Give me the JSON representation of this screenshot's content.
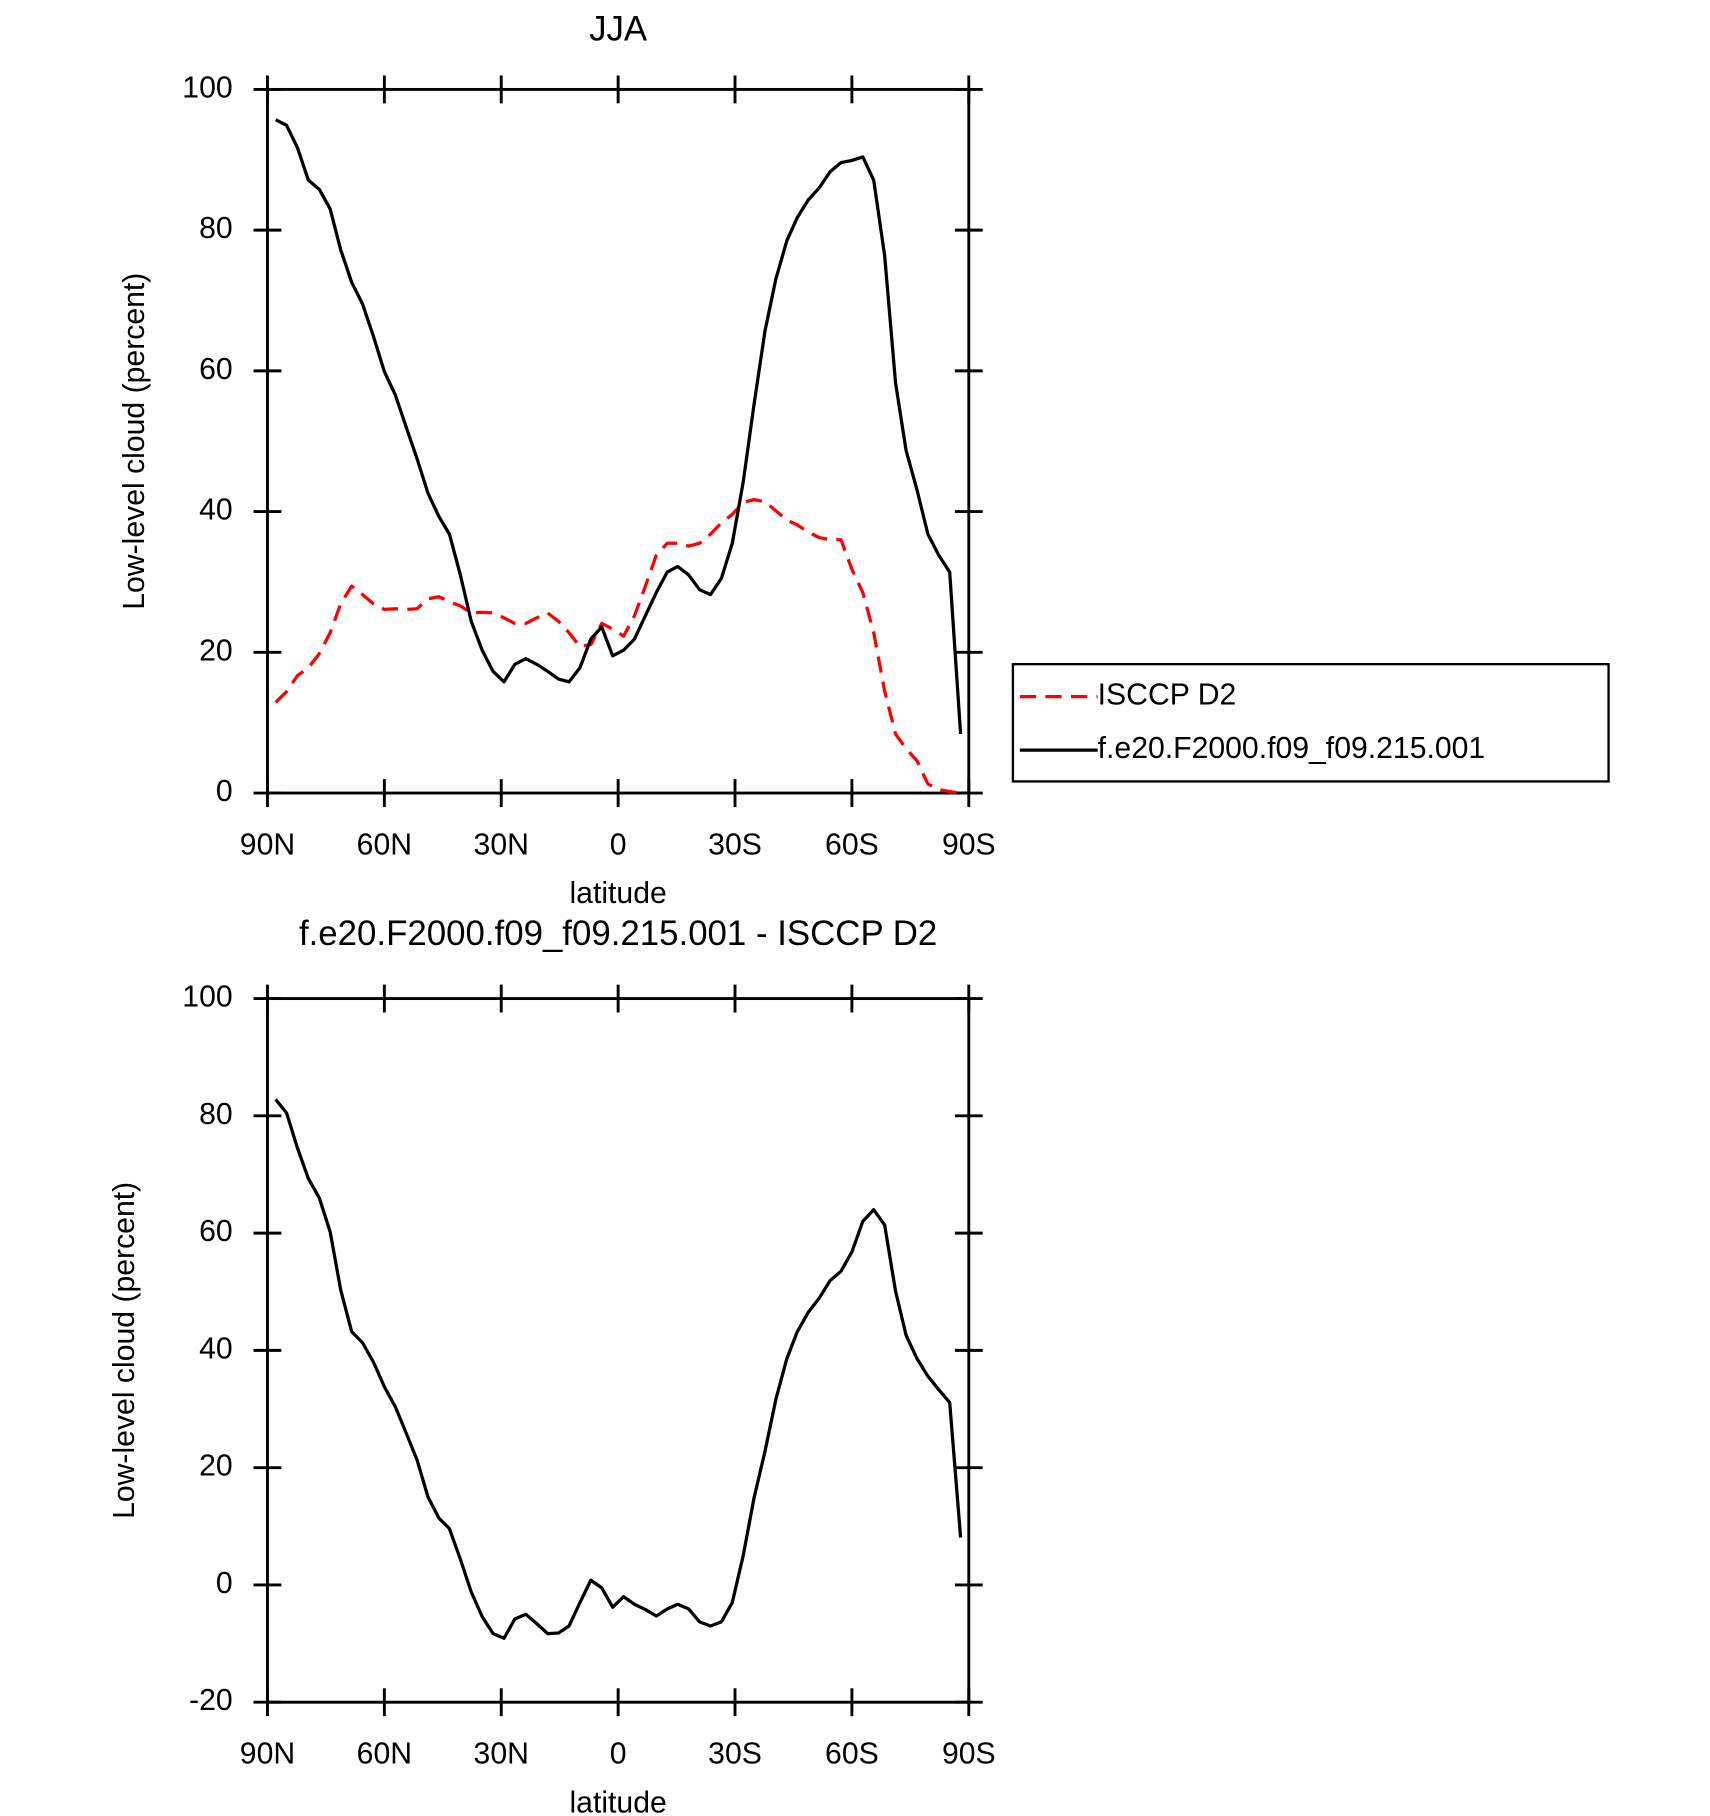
{
  "chart_data": [
    {
      "type": "line",
      "title": "JJA",
      "xlabel": "latitude",
      "ylabel": "Low-level cloud (percent)",
      "x": [
        87.9,
        85.1,
        82.3,
        79.5,
        76.7,
        73.9,
        71.2,
        68.4,
        65.6,
        62.8,
        60.0,
        57.2,
        54.4,
        51.6,
        48.8,
        46.0,
        43.3,
        40.5,
        37.7,
        34.9,
        32.1,
        29.3,
        26.5,
        23.7,
        20.9,
        18.1,
        15.3,
        12.6,
        9.8,
        7.0,
        4.2,
        1.4,
        -1.4,
        -4.2,
        -7.0,
        -9.8,
        -12.6,
        -15.3,
        -18.1,
        -20.9,
        -23.7,
        -26.5,
        -29.3,
        -32.1,
        -34.9,
        -37.7,
        -40.5,
        -43.3,
        -46.0,
        -48.8,
        -51.6,
        -54.4,
        -57.2,
        -60.0,
        -62.8,
        -65.6,
        -68.4,
        -71.2,
        -73.9,
        -76.7,
        -79.5,
        -82.3,
        -85.1,
        -87.9
      ],
      "series": [
        {
          "name": "ISCCP D2",
          "color": "#ff0000",
          "dashed": true,
          "values": [
            12.9,
            14.4,
            16.7,
            17.8,
            19.8,
            22.8,
            26.9,
            29.4,
            28.2,
            26.9,
            26.1,
            26.2,
            26.1,
            26.2,
            27.6,
            27.9,
            27.2,
            26.6,
            25.6,
            25.7,
            25.6,
            24.9,
            24.1,
            24.1,
            24.9,
            25.6,
            24.4,
            22.8,
            20.8,
            21.1,
            24.1,
            23.3,
            22.3,
            25.2,
            29.4,
            33.8,
            35.5,
            35.5,
            35.1,
            35.5,
            36.8,
            38.4,
            39.6,
            41.3,
            41.7,
            41.4,
            40.1,
            38.8,
            38.1,
            37.1,
            36.3,
            36.0,
            36.0,
            31.8,
            28.5,
            22.8,
            14.5,
            8.4,
            6.3,
            4.6,
            1.3,
            0.5,
            0.2,
            0
          ]
        },
        {
          "name": "f.e20.F2000.f09_f09.215.001",
          "color": "#000000",
          "dashed": false,
          "values": [
            95.7,
            94.9,
            91.7,
            87.1,
            85.8,
            83.0,
            77.2,
            72.6,
            69.5,
            64.9,
            59.9,
            56.6,
            52.0,
            47.5,
            42.6,
            39.3,
            36.8,
            31.0,
            24.4,
            20.3,
            17.3,
            15.8,
            18.3,
            19.1,
            18.3,
            17.3,
            16.2,
            15.8,
            17.8,
            21.9,
            23.6,
            19.5,
            20.3,
            21.9,
            25.2,
            28.5,
            31.4,
            32.2,
            31.0,
            28.9,
            28.2,
            30.5,
            35.5,
            44.2,
            55.3,
            65.7,
            73.1,
            78.5,
            81.8,
            84.3,
            86.0,
            88.3,
            89.6,
            89.9,
            90.4,
            87.1,
            76.4,
            58.3,
            48.7,
            43.1,
            36.8,
            33.8,
            31.4,
            8.4
          ]
        }
      ],
      "xlim": [
        90,
        -90
      ],
      "xticks": [
        {
          "value": 90,
          "label": "90N"
        },
        {
          "value": 60,
          "label": "60N"
        },
        {
          "value": 30,
          "label": "30N"
        },
        0,
        {
          "value": -30,
          "label": "30S"
        },
        {
          "value": -60,
          "label": "60S"
        },
        {
          "value": -90,
          "label": "90S"
        }
      ],
      "ylim": [
        0,
        100
      ],
      "yticks": [
        0,
        20,
        40,
        60,
        80,
        100
      ],
      "legend": "outside-right"
    },
    {
      "type": "line",
      "title": "f.e20.F2000.f09_f09.215.001 - ISCCP D2",
      "xlabel": "latitude",
      "ylabel": "Low-level cloud (percent)",
      "x": [
        87.9,
        85.1,
        82.3,
        79.5,
        76.7,
        73.9,
        71.2,
        68.4,
        65.6,
        62.8,
        60.0,
        57.2,
        54.4,
        51.6,
        48.8,
        46.0,
        43.3,
        40.5,
        37.7,
        34.9,
        32.1,
        29.3,
        26.5,
        23.7,
        20.9,
        18.1,
        15.3,
        12.6,
        9.8,
        7.0,
        4.2,
        1.4,
        -1.4,
        -4.2,
        -7.0,
        -9.8,
        -12.6,
        -15.3,
        -18.1,
        -20.9,
        -23.7,
        -26.5,
        -29.3,
        -32.1,
        -34.9,
        -37.7,
        -40.5,
        -43.3,
        -46.0,
        -48.8,
        -51.6,
        -54.4,
        -57.2,
        -60.0,
        -62.8,
        -65.6,
        -68.4,
        -71.2,
        -73.9,
        -76.7,
        -79.5,
        -82.3,
        -85.1,
        -87.9
      ],
      "series": [
        {
          "color": "#000000",
          "dashed": false,
          "values": [
            82.8,
            80.5,
            74.5,
            69.3,
            66.0,
            60.2,
            50.3,
            43.2,
            41.3,
            38.0,
            33.8,
            30.4,
            25.9,
            21.3,
            15.0,
            11.4,
            9.6,
            4.4,
            -1.2,
            -5.4,
            -8.3,
            -9.1,
            -5.8,
            -5.0,
            -6.6,
            -8.3,
            -8.2,
            -7.0,
            -3.0,
            0.8,
            -0.5,
            -3.8,
            -2.0,
            -3.3,
            -4.2,
            -5.3,
            -4.1,
            -3.3,
            -4.1,
            -6.3,
            -7.0,
            -6.3,
            -3.0,
            5.0,
            14.9,
            22.8,
            31.7,
            38.6,
            43.2,
            46.5,
            48.9,
            51.9,
            53.5,
            56.8,
            62.0,
            64.0,
            61.4,
            50.1,
            42.6,
            38.6,
            35.6,
            33.3,
            31.1,
            8.1
          ]
        }
      ],
      "xlim": [
        90,
        -90
      ],
      "xticks": [
        {
          "value": 90,
          "label": "90N"
        },
        {
          "value": 60,
          "label": "60N"
        },
        {
          "value": 30,
          "label": "30N"
        },
        0,
        {
          "value": -30,
          "label": "30S"
        },
        {
          "value": -60,
          "label": "60S"
        },
        {
          "value": -90,
          "label": "90S"
        }
      ],
      "ylim": [
        -20,
        100
      ],
      "yticks": [
        -20,
        0,
        20,
        40,
        60,
        80,
        100
      ]
    }
  ]
}
